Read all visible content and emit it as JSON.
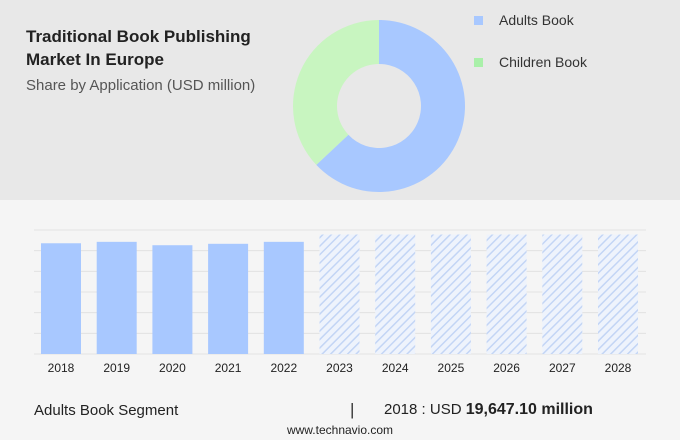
{
  "header": {
    "title": "Traditional Book Publishing Market In Europe",
    "subtitle": "Share by Application (USD million)"
  },
  "legend": [
    {
      "label": "Adults Book",
      "color": "#a8c8ff"
    },
    {
      "label": "Children Book",
      "color": "#a9f0a9"
    }
  ],
  "footer": {
    "segment": "Adults Book Segment",
    "divider": "|",
    "year_label": "2018 : USD",
    "value": "19,647.10 million",
    "source": "www.technavio.com"
  },
  "chart_data": [
    {
      "type": "pie",
      "variant": "donut",
      "labels": [
        "Adults Book",
        "Children Book"
      ],
      "values": [
        63,
        37
      ],
      "colors": [
        "#a8c8ff",
        "#c8f5c0"
      ]
    },
    {
      "type": "bar",
      "categories": [
        "2018",
        "2019",
        "2020",
        "2021",
        "2022",
        "2023",
        "2024",
        "2025",
        "2026",
        "2027",
        "2028"
      ],
      "values": [
        19647.1,
        19900,
        19300,
        19550,
        19900,
        21200,
        21200,
        21200,
        21200,
        21200,
        21200
      ],
      "forecast_from": "2023",
      "colors": {
        "actual": "#a8c8ff",
        "forecast": "#c8d9f7"
      },
      "ylim": [
        0,
        22000
      ],
      "grid": true
    }
  ]
}
